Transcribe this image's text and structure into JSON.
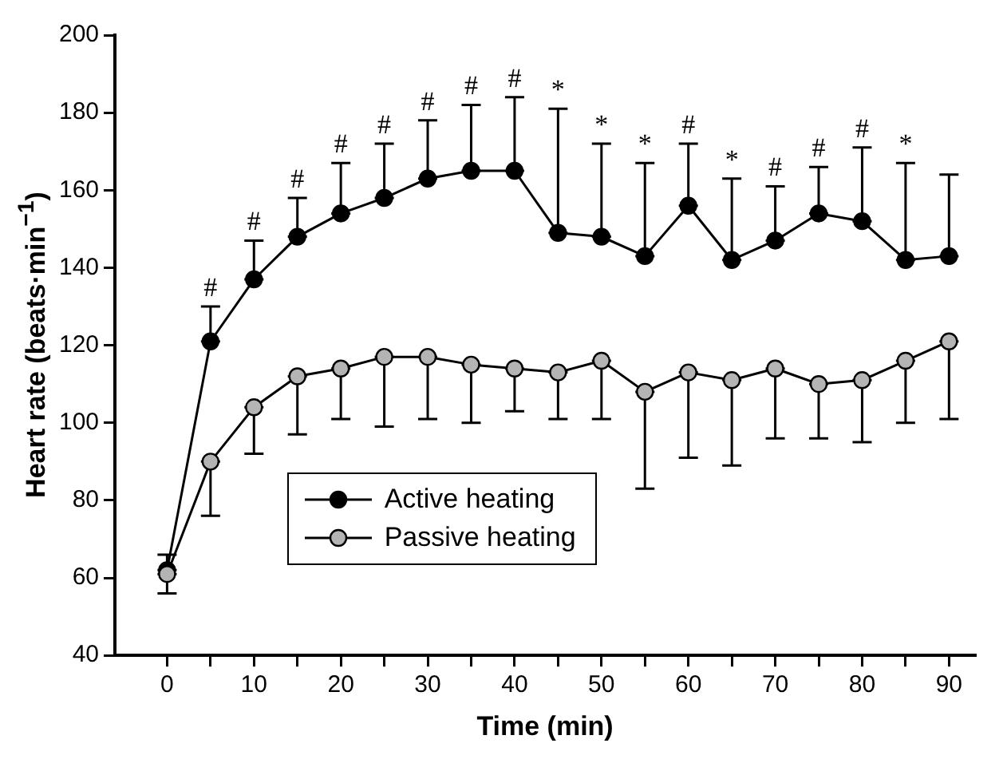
{
  "chart_data": {
    "type": "line",
    "xlabel": "Time (min)",
    "ylabel": "Heart rate (beats·min$^{−1}$)",
    "x": [
      0,
      5,
      10,
      15,
      20,
      25,
      30,
      35,
      40,
      45,
      50,
      55,
      60,
      65,
      70,
      75,
      80,
      85,
      90
    ],
    "series": [
      {
        "name": "Active heating",
        "color": "#000000",
        "values": [
          62,
          121,
          137,
          148,
          154,
          158,
          163,
          165,
          165,
          149,
          148,
          143,
          156,
          142,
          147,
          154,
          152,
          142,
          143
        ],
        "errors": [
          [
            62,
            66
          ],
          [
            121,
            130
          ],
          [
            137,
            147
          ],
          [
            148,
            158
          ],
          [
            154,
            167
          ],
          [
            158,
            172
          ],
          [
            163,
            178
          ],
          [
            165,
            182
          ],
          [
            165,
            184
          ],
          [
            149,
            181
          ],
          [
            148,
            172
          ],
          [
            143,
            167
          ],
          [
            156,
            172
          ],
          [
            142,
            163
          ],
          [
            147,
            161
          ],
          [
            154,
            166
          ],
          [
            152,
            171
          ],
          [
            142,
            167
          ],
          [
            143,
            164
          ]
        ]
      },
      {
        "name": "Passive heating",
        "color": "#b4b4b4",
        "values": [
          61,
          90,
          104,
          112,
          114,
          117,
          117,
          115,
          114,
          113,
          116,
          108,
          113,
          111,
          114,
          110,
          111,
          116,
          121
        ],
        "errors": [
          [
            56,
            61
          ],
          [
            76,
            90
          ],
          [
            92,
            104
          ],
          [
            97,
            112
          ],
          [
            101,
            114
          ],
          [
            99,
            117
          ],
          [
            101,
            117
          ],
          [
            100,
            115
          ],
          [
            103,
            114
          ],
          [
            101,
            113
          ],
          [
            101,
            116
          ],
          [
            83,
            108
          ],
          [
            91,
            113
          ],
          [
            89,
            111
          ],
          [
            96,
            114
          ],
          [
            96,
            110
          ],
          [
            95,
            111
          ],
          [
            100,
            116
          ],
          [
            101,
            121
          ]
        ]
      }
    ],
    "annotations": [
      {
        "text": "#",
        "x": 5,
        "y": 130
      },
      {
        "text": "#",
        "x": 10,
        "y": 147
      },
      {
        "text": "#",
        "x": 15,
        "y": 158
      },
      {
        "text": "#",
        "x": 20,
        "y": 167
      },
      {
        "text": "#",
        "x": 25,
        "y": 172
      },
      {
        "text": "#",
        "x": 30,
        "y": 178
      },
      {
        "text": "#",
        "x": 35,
        "y": 182
      },
      {
        "text": "#",
        "x": 40,
        "y": 184
      },
      {
        "text": "*",
        "x": 45,
        "y": 181
      },
      {
        "text": "*",
        "x": 50,
        "y": 172
      },
      {
        "text": "*",
        "x": 55,
        "y": 167
      },
      {
        "text": "#",
        "x": 60,
        "y": 172
      },
      {
        "text": "*",
        "x": 65,
        "y": 163
      },
      {
        "text": "#",
        "x": 70,
        "y": 161
      },
      {
        "text": "#",
        "x": 75,
        "y": 166
      },
      {
        "text": "#",
        "x": 80,
        "y": 171
      },
      {
        "text": "*",
        "x": 85,
        "y": 167
      }
    ],
    "xlim": [
      -6,
      93
    ],
    "xticks": [
      0,
      {
        "value": 5,
        "label": null
      },
      10,
      {
        "value": 15,
        "label": null
      },
      20,
      {
        "value": 25,
        "label": null
      },
      30,
      {
        "value": 35,
        "label": null
      },
      40,
      {
        "value": 45,
        "label": null
      },
      50,
      {
        "value": 55,
        "label": null
      },
      60,
      {
        "value": 65,
        "label": null
      },
      70,
      {
        "value": 75,
        "label": null
      },
      80,
      {
        "value": 85,
        "label": null
      },
      90
    ],
    "ylim": [
      40,
      200
    ],
    "yticks": [
      40,
      60,
      80,
      100,
      120,
      140,
      160,
      180,
      200
    ],
    "grid": false,
    "legend": "bottom",
    "marker": "circle",
    "line_style": "solid"
  }
}
